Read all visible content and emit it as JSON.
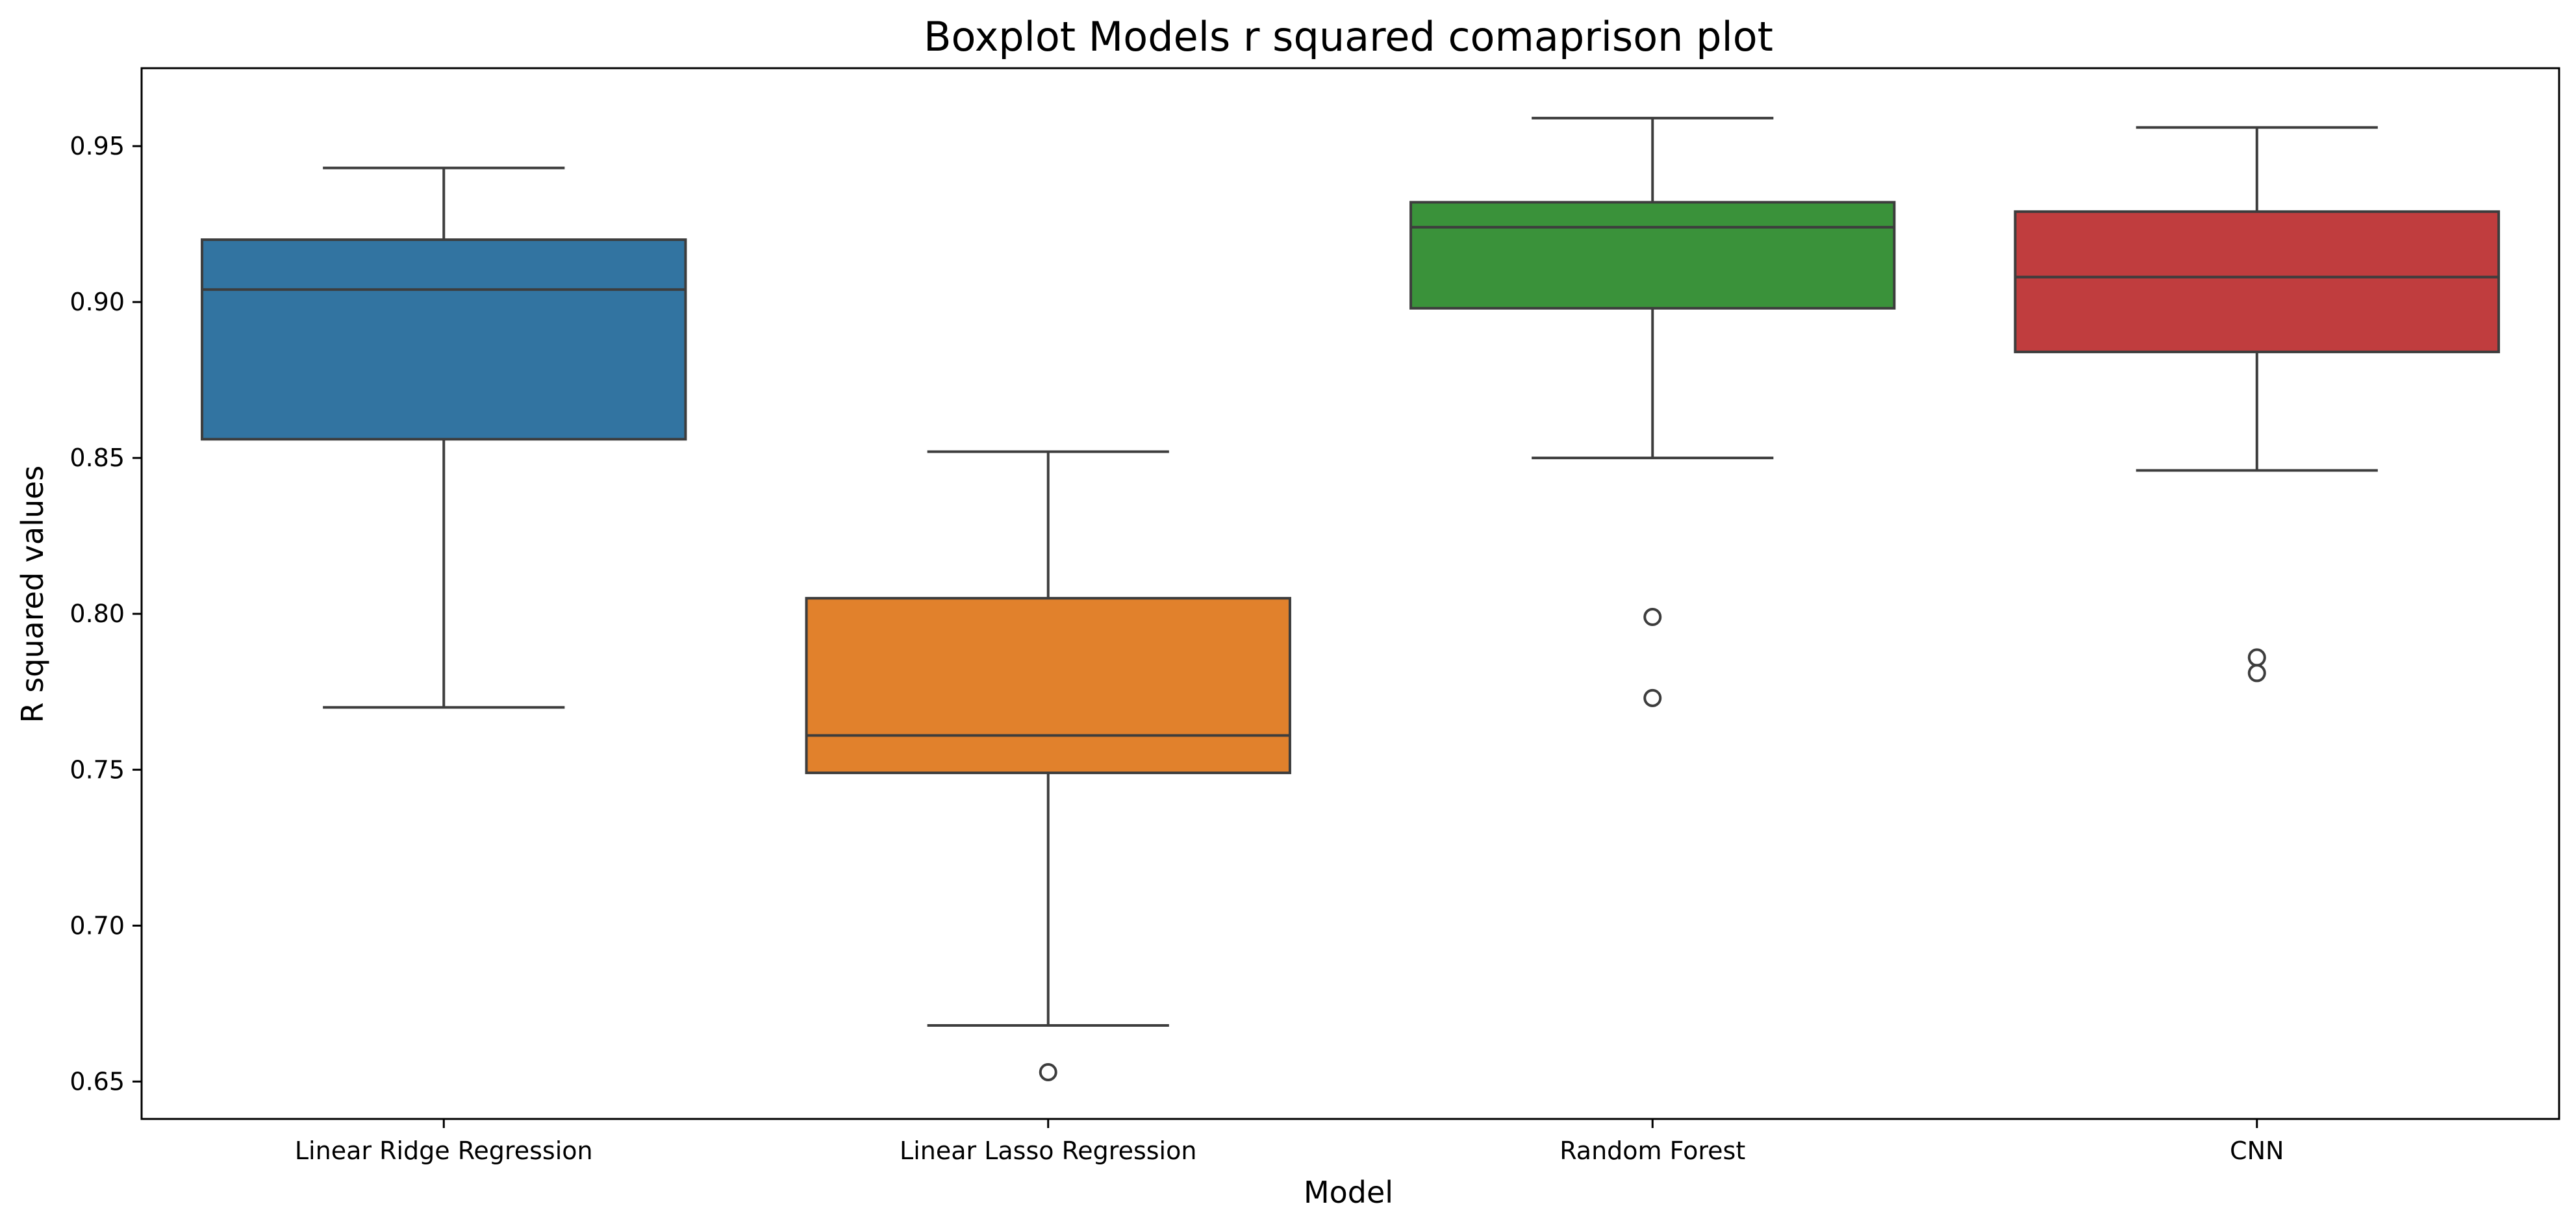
{
  "chart_data": {
    "type": "box",
    "title": "Boxplot Models r squared comaprison plot",
    "xlabel": "Model",
    "ylabel": "R squared values",
    "ylim": [
      0.638,
      0.975
    ],
    "yticks": [
      0.65,
      0.7,
      0.75,
      0.8,
      0.85,
      0.9,
      0.95
    ],
    "ytick_labels": [
      "0.65",
      "0.70",
      "0.75",
      "0.80",
      "0.85",
      "0.90",
      "0.95"
    ],
    "grid": false,
    "legend": "none",
    "categories": [
      "Linear Ridge Regression",
      "Linear Lasso Regression",
      "Random Forest",
      "CNN"
    ],
    "boxes": [
      {
        "category": "Linear Ridge Regression",
        "whisker_low": 0.77,
        "q1": 0.856,
        "median": 0.904,
        "q3": 0.92,
        "whisker_high": 0.943,
        "outliers": [],
        "color": "#3274a1"
      },
      {
        "category": "Linear Lasso Regression",
        "whisker_low": 0.668,
        "q1": 0.749,
        "median": 0.761,
        "q3": 0.805,
        "whisker_high": 0.852,
        "outliers": [
          0.653
        ],
        "color": "#e1812c"
      },
      {
        "category": "Random Forest",
        "whisker_low": 0.85,
        "q1": 0.898,
        "median": 0.924,
        "q3": 0.932,
        "whisker_high": 0.959,
        "outliers": [
          0.799,
          0.773
        ],
        "color": "#3a923a"
      },
      {
        "category": "CNN",
        "whisker_low": 0.846,
        "q1": 0.884,
        "median": 0.908,
        "q3": 0.929,
        "whisker_high": 0.956,
        "outliers": [
          0.786,
          0.781
        ],
        "color": "#c03d3e"
      }
    ],
    "colors": {
      "line": "#3d3d3d",
      "axis": "#000000"
    }
  }
}
